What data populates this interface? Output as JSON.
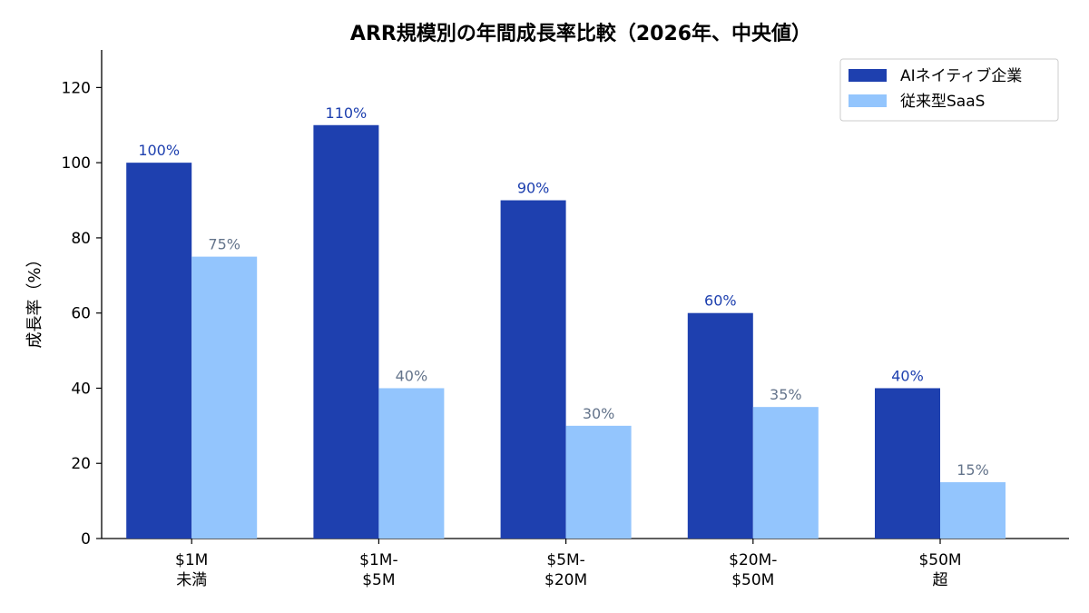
{
  "chart_data": {
    "type": "bar",
    "title": "ARR規模別の年間成長率比較（2026年、中央値）",
    "xlabel": "",
    "ylabel": "成長率（%）",
    "ylim": [
      0,
      130
    ],
    "yticks": [
      0,
      20,
      40,
      60,
      80,
      100,
      120
    ],
    "categories": [
      [
        "$1M",
        "未満"
      ],
      [
        "$1M-",
        "$5M"
      ],
      [
        "$5M-",
        "$20M"
      ],
      [
        "$20M-",
        "$50M"
      ],
      [
        "$50M",
        "超"
      ]
    ],
    "series": [
      {
        "name": "AIネイティブ企業",
        "values": [
          100,
          110,
          90,
          60,
          40
        ],
        "labels": [
          "100%",
          "110%",
          "90%",
          "60%",
          "40%"
        ],
        "color": "#1e40af",
        "label_color": "#1e40af"
      },
      {
        "name": "従来型SaaS",
        "values": [
          75,
          40,
          30,
          35,
          15
        ],
        "labels": [
          "75%",
          "40%",
          "30%",
          "35%",
          "15%"
        ],
        "color": "#93c5fd",
        "label_color": "#64748b"
      }
    ],
    "grid": false,
    "legend": "top-right"
  }
}
